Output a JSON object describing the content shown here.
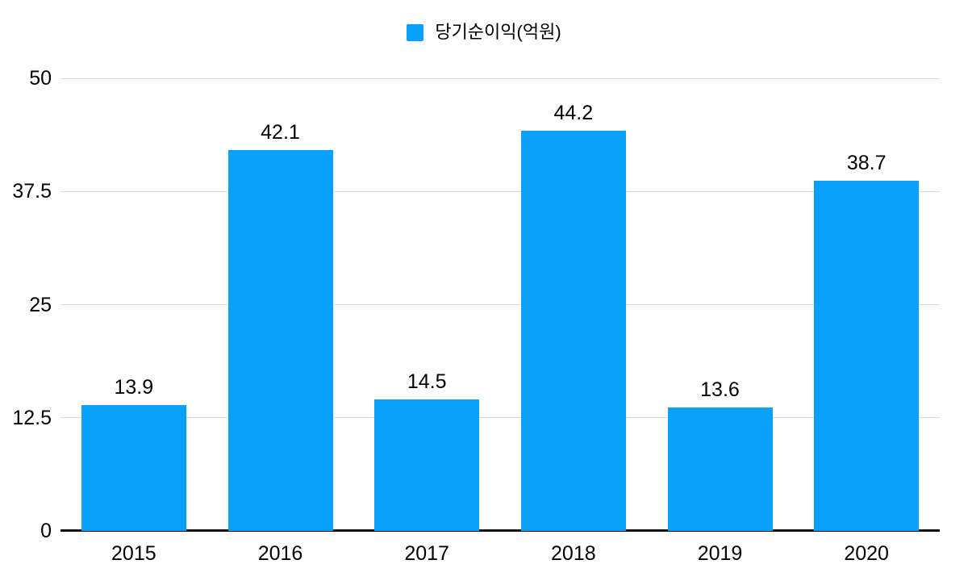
{
  "chart_data": {
    "type": "bar",
    "title": "",
    "legend": "당기순이익(억원)",
    "legend_position": "top-center",
    "categories": [
      "2015",
      "2016",
      "2017",
      "2018",
      "2019",
      "2020"
    ],
    "values": [
      13.9,
      42.1,
      14.5,
      44.2,
      13.6,
      38.7
    ],
    "xlabel": "",
    "ylabel": "",
    "ylim": [
      0,
      50
    ],
    "yticks": [
      0,
      12.5,
      25,
      37.5,
      50
    ],
    "grid": true,
    "colors": {
      "bar": "#0aa1fb",
      "gridline": "#d9d9d9",
      "axis_line": "#111111",
      "text": "#000000",
      "background": "#ffffff"
    }
  }
}
